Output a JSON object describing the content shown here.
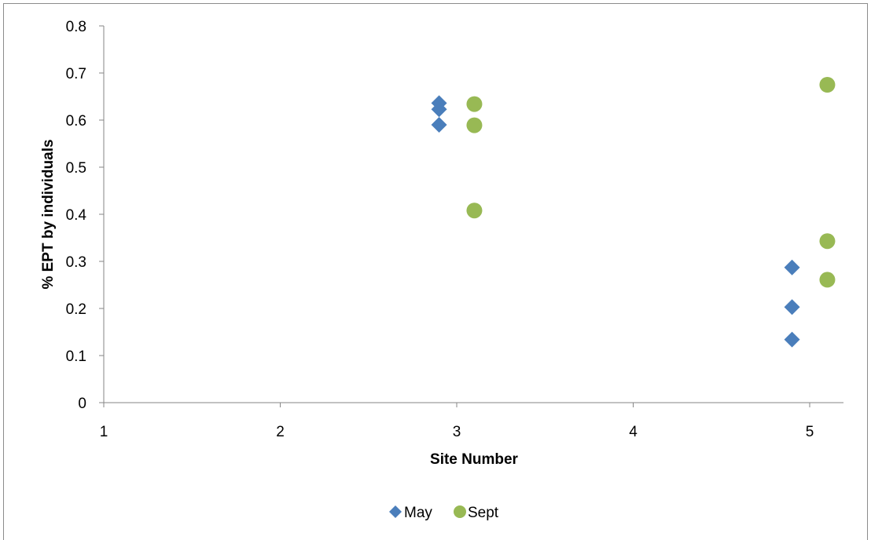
{
  "chart_data": {
    "type": "scatter",
    "title": "",
    "xlabel": "Site Number",
    "ylabel": "% EPT by individuals",
    "xlim": [
      1,
      5.2
    ],
    "ylim": [
      0,
      0.8
    ],
    "x_ticks": [
      1,
      2,
      3,
      4,
      5
    ],
    "x_tick_labels": [
      "1",
      "2",
      "3",
      "4",
      "5"
    ],
    "y_ticks": [
      0,
      0.1,
      0.2,
      0.3,
      0.4,
      0.5,
      0.6,
      0.7,
      0.8
    ],
    "y_tick_labels": [
      "0",
      "0.1",
      "0.2",
      "0.3",
      "0.4",
      "0.5",
      "0.6",
      "0.7",
      "0.8"
    ],
    "grid": false,
    "legend_position": "bottom",
    "series": [
      {
        "name": "May",
        "marker": "diamond",
        "color": "#4a7ebb",
        "points": [
          {
            "x": 2.9,
            "y": 0.636
          },
          {
            "x": 2.9,
            "y": 0.623
          },
          {
            "x": 2.9,
            "y": 0.59
          },
          {
            "x": 4.9,
            "y": 0.287
          },
          {
            "x": 4.9,
            "y": 0.203
          },
          {
            "x": 4.9,
            "y": 0.134
          }
        ]
      },
      {
        "name": "Sept",
        "marker": "circle",
        "color": "#98b954",
        "points": [
          {
            "x": 3.1,
            "y": 0.634
          },
          {
            "x": 3.1,
            "y": 0.589
          },
          {
            "x": 3.1,
            "y": 0.408
          },
          {
            "x": 5.1,
            "y": 0.675
          },
          {
            "x": 5.1,
            "y": 0.343
          },
          {
            "x": 5.1,
            "y": 0.261
          }
        ]
      }
    ]
  }
}
